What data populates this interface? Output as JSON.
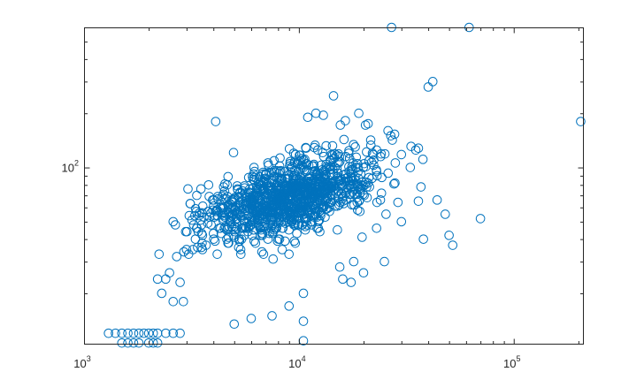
{
  "chart_data": {
    "type": "scatter",
    "xscale": "log",
    "yscale": "log",
    "xlim": [
      1000,
      210000
    ],
    "ylim": [
      10.5,
      600
    ],
    "x_ticks": [
      {
        "value": 1000,
        "base": "10",
        "exp": "3"
      },
      {
        "value": 10000,
        "base": "10",
        "exp": "4"
      },
      {
        "value": 100000,
        "base": "10",
        "exp": "5"
      }
    ],
    "y_ticks": [
      {
        "value": 100,
        "base": "10",
        "exp": "2"
      }
    ],
    "grid": false,
    "box": true,
    "marker": "circle-open",
    "color": "#0072BD",
    "fixed_points": [
      [
        27000,
        600
      ],
      [
        62000,
        600
      ],
      [
        205000,
        180
      ],
      [
        4100,
        180
      ],
      [
        42000,
        300
      ],
      [
        40000,
        280
      ],
      [
        14500,
        250
      ],
      [
        1300,
        12
      ],
      [
        1400,
        12
      ],
      [
        1500,
        12
      ],
      [
        1600,
        12
      ],
      [
        1700,
        12
      ],
      [
        1800,
        12
      ],
      [
        1900,
        12
      ],
      [
        2000,
        12
      ],
      [
        2100,
        12
      ],
      [
        2200,
        12
      ],
      [
        2400,
        12
      ],
      [
        2600,
        12
      ],
      [
        2800,
        12
      ],
      [
        1500,
        10.6
      ],
      [
        1600,
        10.6
      ],
      [
        1700,
        10.6
      ],
      [
        1800,
        10.6
      ],
      [
        2000,
        10.6
      ],
      [
        2100,
        10.6
      ],
      [
        2200,
        10.6
      ],
      [
        10500,
        10.9
      ],
      [
        10500,
        14
      ],
      [
        7500,
        15
      ],
      [
        6000,
        14.5
      ],
      [
        9000,
        17
      ],
      [
        10500,
        20
      ],
      [
        5000,
        13.5
      ],
      [
        2300,
        20
      ],
      [
        2600,
        18
      ],
      [
        2900,
        18
      ],
      [
        70000,
        52
      ],
      [
        52000,
        37
      ],
      [
        50000,
        42
      ],
      [
        44000,
        66
      ],
      [
        36000,
        65
      ],
      [
        48000,
        55
      ],
      [
        38000,
        40
      ],
      [
        30000,
        50
      ],
      [
        33000,
        100
      ],
      [
        30000,
        118
      ],
      [
        37000,
        78
      ],
      [
        25000,
        30
      ],
      [
        23000,
        46
      ],
      [
        28000,
        82
      ],
      [
        35000,
        125
      ],
      [
        36000,
        128
      ],
      [
        3300,
        40
      ],
      [
        3000,
        35
      ],
      [
        2700,
        32
      ],
      [
        2500,
        26
      ],
      [
        2800,
        23
      ],
      [
        2200,
        24
      ],
      [
        2400,
        24
      ],
      [
        3500,
        76
      ],
      [
        3800,
        80
      ],
      [
        4300,
        60
      ],
      [
        4700,
        62
      ],
      [
        16000,
        24
      ],
      [
        15500,
        28
      ],
      [
        17500,
        23
      ],
      [
        20000,
        26
      ],
      [
        18000,
        30
      ],
      [
        22000,
        120
      ],
      [
        24000,
        115
      ],
      [
        26000,
        160
      ],
      [
        19000,
        200
      ],
      [
        21000,
        175
      ],
      [
        12000,
        200
      ],
      [
        13000,
        195
      ],
      [
        11000,
        190
      ]
    ],
    "cluster_points": 1100,
    "cluster_center_log": [
      3.95,
      1.83
    ],
    "cluster_spread": [
      0.2,
      0.12
    ],
    "cluster_correlation": 0.55,
    "random_seed": 17
  }
}
